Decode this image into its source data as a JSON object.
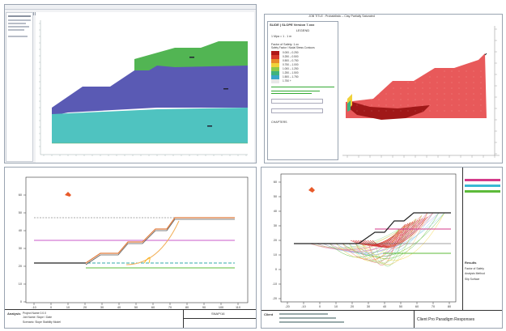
{
  "pane_tl": {
    "tool_icons": [
      "open-icon",
      "save-icon",
      "print-icon",
      "zoom-in-icon",
      "zoom-out-icon",
      "pan-icon",
      "select-icon",
      "grid-icon",
      "axes-icon",
      "settings-icon"
    ],
    "material_colors": [
      "#52b553",
      "#5a5ab4",
      "#4fc3c0"
    ]
  },
  "pane_tr": {
    "title": "JOB TITLE : Probabilistic – Clay Partially Saturated",
    "legend_heading": "SLIDE | SLOPE Version 7.xxx",
    "legend_sub": "LEGEND",
    "legend_scale": "1 Mpa = 1 . 1 m",
    "legend_fos_heading": "Factor of Safety: 1.xx",
    "legend_fos_title": "Safety Factor / Nodal Stress Contours",
    "legend_entries": [
      "0.000 – 0.250",
      "0.250 – 0.500",
      "0.500 – 0.750",
      "0.750 – 1.000",
      "1.000 – 1.250",
      "1.250 – 1.500",
      "1.500 – 1.750",
      "1.750 +"
    ],
    "legend_colors": [
      "#b01818",
      "#d63a2a",
      "#e88a2a",
      "#f0d23a",
      "#8fc94a",
      "#3fb37d",
      "#3aa6c9",
      "#e8e8e8"
    ],
    "legend_footer": "CHAPTERS",
    "surface_color": "#e8595a",
    "core_color": "#a01818"
  },
  "pane_bl": {
    "x_ticks": [
      "-10",
      "0",
      "10",
      "20",
      "30",
      "40",
      "50",
      "60",
      "70",
      "80",
      "90",
      "100",
      "110"
    ],
    "y_ticks": [
      "60",
      "50",
      "40",
      "30",
      "20",
      "10",
      "0"
    ],
    "footer_left": "Analysis",
    "footer_mid": "SNAP/16",
    "footer_lines": [
      "Project Name 0.0.0",
      "Job Name: Slope / Date",
      "Scenario: Slope Stability Model"
    ]
  },
  "pane_br": {
    "x_ticks": [
      "-20",
      "-10",
      "0",
      "10",
      "20",
      "30",
      "40",
      "50",
      "60",
      "70",
      "80"
    ],
    "y_ticks": [
      "60",
      "50",
      "40",
      "30",
      "20",
      "10",
      "0",
      "-10",
      "-20"
    ],
    "footer_left": "Client",
    "footer_right": "Client Pro Paradigm Responses",
    "side_panel_title": "Results",
    "side_panel_items": [
      "Factor of Safety",
      "Analysis Method",
      "Slip Surface"
    ],
    "side_legend_colors": [
      "#d43a8a",
      "#3ab8d4",
      "#5dbb3a"
    ]
  }
}
